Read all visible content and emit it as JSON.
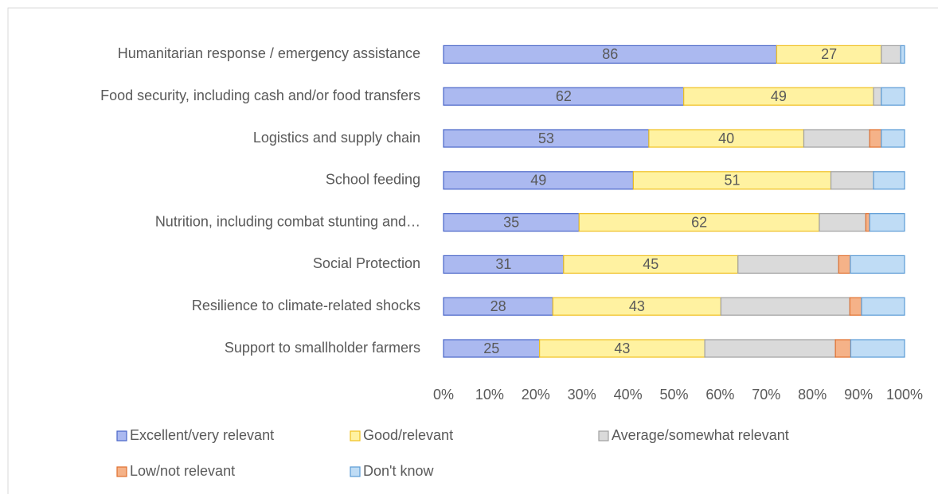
{
  "chart_data": {
    "type": "stacked_bar_100",
    "categories": [
      "Humanitarian response / emergency assistance",
      "Food security, including cash and/or food transfers",
      "Logistics and supply chain",
      "School feeding",
      "Nutrition, including combat stunting and…",
      "Social Protection",
      "Resilience to climate-related shocks",
      "Support to smallholder farmers"
    ],
    "series": [
      {
        "name": "Excellent/very relevant",
        "color": "#abb9f0",
        "stroke": "#4a66c8",
        "data_labels": true,
        "values": [
          86,
          62,
          53,
          49,
          35,
          31,
          28,
          25
        ]
      },
      {
        "name": "Good/relevant",
        "color": "#fff2a1",
        "stroke": "#f0c020",
        "data_labels": true,
        "values": [
          27,
          49,
          40,
          51,
          62,
          45,
          43,
          43
        ]
      },
      {
        "name": "Average/somewhat relevant",
        "color": "#dadada",
        "stroke": "#a0a0a0",
        "data_labels": false,
        "values": [
          5,
          2,
          17,
          11,
          12,
          26,
          33,
          34
        ]
      },
      {
        "name": "Low/not relevant",
        "color": "#f5b288",
        "stroke": "#e07030",
        "data_labels": false,
        "values": [
          0,
          0,
          3,
          0,
          1,
          3,
          3,
          4
        ]
      },
      {
        "name": "Don't know",
        "color": "#bfdcf5",
        "stroke": "#5b9bd5",
        "data_labels": false,
        "values": [
          1,
          6,
          6,
          8,
          9,
          14,
          11,
          14
        ]
      }
    ],
    "xlim": [
      0,
      100
    ],
    "xticks": [
      {
        "value": 0,
        "label": "0%"
      },
      {
        "value": 10,
        "label": "10%"
      },
      {
        "value": 20,
        "label": "20%"
      },
      {
        "value": 30,
        "label": "30%"
      },
      {
        "value": 40,
        "label": "40%"
      },
      {
        "value": 50,
        "label": "50%"
      },
      {
        "value": 60,
        "label": "60%"
      },
      {
        "value": 70,
        "label": "70%"
      },
      {
        "value": 80,
        "label": "80%"
      },
      {
        "value": 90,
        "label": "90%"
      },
      {
        "value": 100,
        "label": "100%"
      }
    ],
    "grid": false,
    "legend": "bottom"
  }
}
